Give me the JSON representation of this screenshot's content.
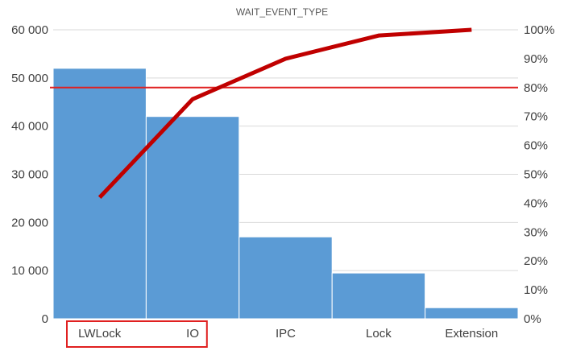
{
  "chart_data": {
    "type": "bar",
    "title": "WAIT_EVENT_TYPE",
    "categories": [
      "LWLock",
      "IO",
      "IPC",
      "Lock",
      "Extension"
    ],
    "series": [
      {
        "type": "bar",
        "values": [
          52000,
          42000,
          17000,
          9500,
          2300
        ]
      },
      {
        "type": "line",
        "axis": "right",
        "values": [
          0.42,
          0.76,
          0.9,
          0.98,
          1.0
        ]
      }
    ],
    "ylim": [
      0,
      60000
    ],
    "yticks": [
      "0",
      "10 000",
      "20 000",
      "30 000",
      "40 000",
      "50 000",
      "60 000"
    ],
    "y2lim": [
      0,
      1
    ],
    "y2ticks": [
      "0%",
      "10%",
      "20%",
      "30%",
      "40%",
      "50%",
      "60%",
      "70%",
      "80%",
      "90%",
      "100%"
    ],
    "threshold": {
      "axis": "right",
      "value": 0.8
    },
    "highlight_box_categories": [
      "LWLock",
      "IO"
    ],
    "grid": true,
    "colors": {
      "bar": "#5b9bd5",
      "line": "#c00000",
      "threshold": "#e02020",
      "highlight_box": "#e02020",
      "grid": "#d9d9d9"
    }
  }
}
